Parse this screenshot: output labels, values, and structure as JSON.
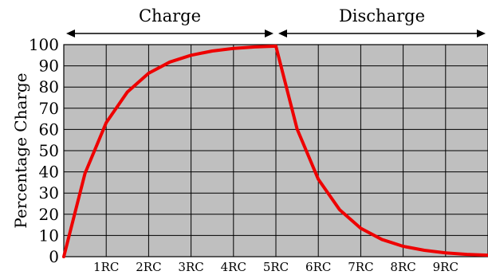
{
  "chart_data": {
    "type": "line",
    "title": "",
    "xlabel": "",
    "ylabel": "Percentage Charge",
    "xlim": [
      0,
      10
    ],
    "ylim": [
      0,
      100
    ],
    "grid": true,
    "x_ticks": [
      "1RC",
      "2RC",
      "3RC",
      "4RC",
      "5RC",
      "6RC",
      "7RC",
      "8RC",
      "9RC"
    ],
    "y_ticks": [
      "0",
      "10",
      "20",
      "30",
      "40",
      "50",
      "60",
      "70",
      "80",
      "90",
      "100"
    ],
    "sections": [
      {
        "label": "Charge",
        "from": 0,
        "to": 5
      },
      {
        "label": "Discharge",
        "from": 5,
        "to": 10
      }
    ],
    "series": [
      {
        "x": [
          0,
          0.5,
          1,
          1.5,
          2,
          2.5,
          3,
          3.5,
          4,
          4.5,
          5,
          5.5,
          6,
          6.5,
          7,
          7.5,
          8,
          8.5,
          9,
          9.5,
          10
        ],
        "y": [
          0,
          39.3,
          63.2,
          77.7,
          86.5,
          91.8,
          95.0,
          97.0,
          98.2,
          98.9,
          99.3,
          60.2,
          36.5,
          22.2,
          13.4,
          8.1,
          4.9,
          3.0,
          1.8,
          1.1,
          0.7
        ],
        "color": "#ee0000"
      }
    ],
    "plot_bg": "#bfbfbf",
    "grid_color": "#000000"
  }
}
